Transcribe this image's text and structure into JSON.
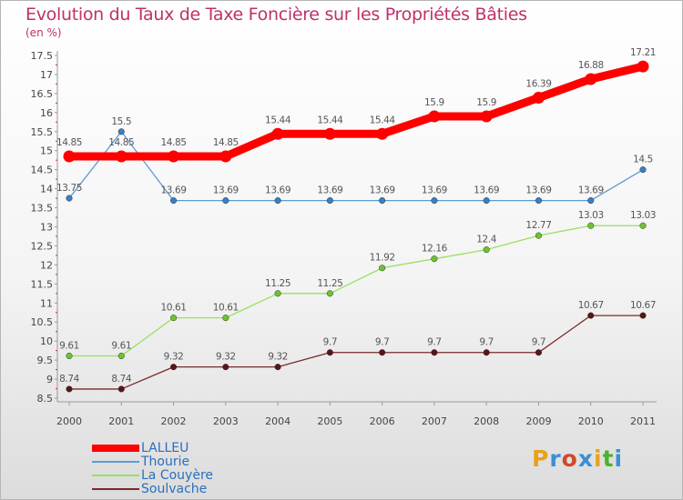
{
  "header": {
    "title": "Evolution du Taux de Taxe Foncière sur les Propriétés Bâties",
    "unit_label": "(en %)"
  },
  "logo": {
    "text": "Proxiti",
    "colors": [
      "#e8a21a",
      "#3a8fd6",
      "#d04a2a",
      "#3a8fd6",
      "#e8a21a",
      "#50b030",
      "#3a8fd6"
    ]
  },
  "chart_data": {
    "type": "line",
    "title": "Evolution du Taux de Taxe Foncière sur les Propriétés Bâties",
    "ylabel": "(en %)",
    "xlabel": "",
    "x": [
      "2000",
      "2001",
      "2002",
      "2003",
      "2004",
      "2005",
      "2006",
      "2007",
      "2008",
      "2009",
      "2010",
      "2011"
    ],
    "ylim": [
      8.5,
      17.5
    ],
    "yticks": [
      "8.5",
      "9",
      "9.5",
      "10",
      "10.5",
      "11",
      "11.5",
      "12",
      "12.5",
      "13",
      "13.5",
      "14",
      "14.5",
      "15",
      "15.5",
      "16",
      "16.5",
      "17",
      "17.5"
    ],
    "grid": false,
    "legend_position": "bottom-left",
    "series": [
      {
        "name": "LALLEU",
        "color": "#ff0000",
        "marker": "#ff0000",
        "values": [
          14.85,
          14.85,
          14.85,
          14.85,
          15.44,
          15.44,
          15.44,
          15.9,
          15.9,
          16.39,
          16.88,
          17.21
        ],
        "labels": [
          "14.85",
          "14.85",
          "14.85",
          "14.85",
          "15.44",
          "15.44",
          "15.44",
          "15.9",
          "15.9",
          "16.39",
          "16.88",
          "17.21"
        ]
      },
      {
        "name": "Thourie",
        "color": "#5b9bd5",
        "marker": "#3a7fc1",
        "values": [
          13.75,
          15.5,
          13.69,
          13.69,
          13.69,
          13.69,
          13.69,
          13.69,
          13.69,
          13.69,
          13.69,
          14.5
        ],
        "labels": [
          "13.75",
          "15.5",
          "13.69",
          "13.69",
          "13.69",
          "13.69",
          "13.69",
          "13.69",
          "13.69",
          "13.69",
          "13.69",
          "14.5"
        ]
      },
      {
        "name": "La Couyère",
        "color": "#99e060",
        "marker": "#6cc42c",
        "values": [
          9.61,
          9.61,
          10.61,
          10.61,
          11.25,
          11.25,
          11.92,
          12.16,
          12.4,
          12.77,
          13.03,
          13.03
        ],
        "labels": [
          "9.61",
          "9.61",
          "10.61",
          "10.61",
          "11.25",
          "11.25",
          "11.92",
          "12.16",
          "12.4",
          "12.77",
          "13.03",
          "13.03"
        ]
      },
      {
        "name": "Soulvache",
        "color": "#7a2a2a",
        "marker": "#5a1414",
        "values": [
          8.74,
          8.74,
          9.32,
          9.32,
          9.32,
          9.7,
          9.7,
          9.7,
          9.7,
          9.7,
          10.67,
          10.67
        ],
        "labels": [
          "8.74",
          "8.74",
          "9.32",
          "9.32",
          "9.32",
          "9.7",
          "9.7",
          "9.7",
          "9.7",
          "9.7",
          "10.67",
          "10.67"
        ]
      }
    ]
  }
}
